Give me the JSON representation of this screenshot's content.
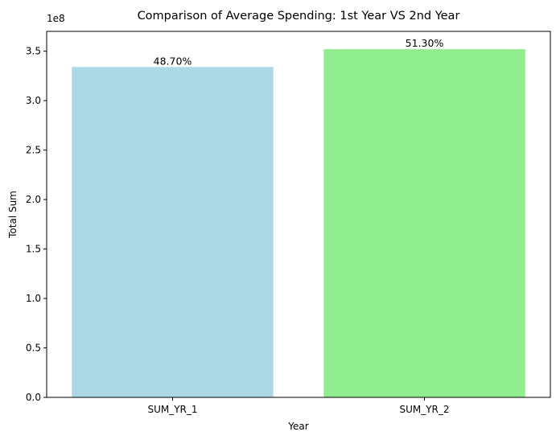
{
  "chart_data": {
    "type": "bar",
    "title": "Comparison of Average Spending: 1st Year VS 2nd Year",
    "xlabel": "Year",
    "ylabel": "Total Sum",
    "y_offset_label": "1e8",
    "y_scale": 100000000,
    "ylim": [
      0,
      370000000
    ],
    "yticks": [
      0,
      50000000,
      100000000,
      150000000,
      200000000,
      250000000,
      300000000,
      350000000
    ],
    "ytick_labels": [
      "0.0",
      "0.5",
      "1.0",
      "1.5",
      "2.0",
      "2.5",
      "3.0",
      "3.5"
    ],
    "categories": [
      "SUM_YR_1",
      "SUM_YR_2"
    ],
    "values": [
      334000000,
      352000000
    ],
    "data_labels": [
      "48.70%",
      "51.30%"
    ],
    "colors": [
      "#add8e6",
      "#90ee90"
    ],
    "grid": false,
    "legend": "none"
  }
}
